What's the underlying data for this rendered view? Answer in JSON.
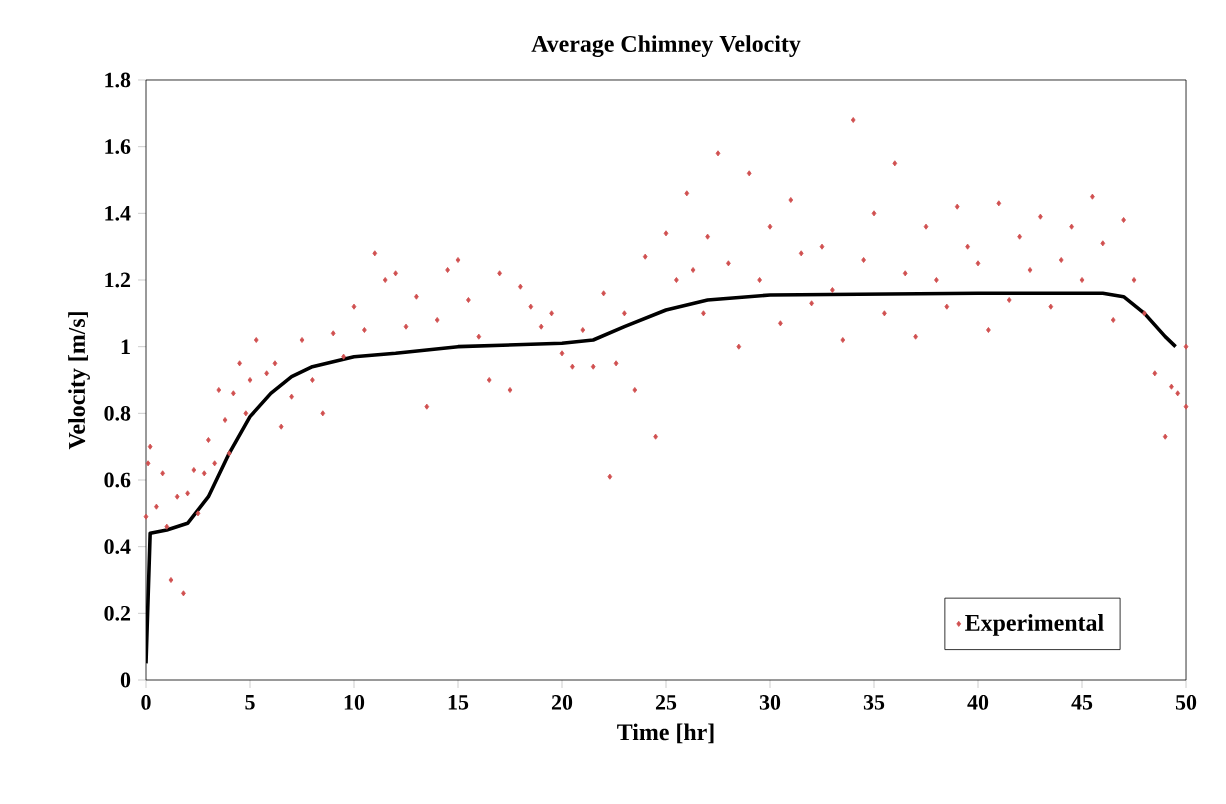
{
  "chart_data": {
    "type": "scatter",
    "title": "Average Chimney Velocity",
    "xlabel": "Time [hr]",
    "ylabel": "Velocity [m/s]",
    "xlim": [
      0,
      50
    ],
    "xticks": [
      0,
      5,
      10,
      15,
      20,
      25,
      30,
      35,
      40,
      45,
      50
    ],
    "ylim": [
      0,
      1.8
    ],
    "yticks": [
      0,
      0.2,
      0.4,
      0.6,
      0.8,
      1,
      1.2,
      1.4,
      1.6,
      1.8
    ],
    "grid": false,
    "legend": "bottom right",
    "series": [
      {
        "name": "Experimental",
        "marker": "diamond",
        "color": "#d05050",
        "x": [
          0,
          0.1,
          0.2,
          0.5,
          0.8,
          1,
          1.2,
          1.5,
          1.8,
          2,
          2.3,
          2.5,
          2.8,
          3,
          3.3,
          3.5,
          3.8,
          4,
          4.2,
          4.5,
          4.8,
          5,
          5.3,
          5.8,
          6.2,
          6.5,
          7,
          7.5,
          8,
          8.5,
          9,
          9.5,
          10,
          10.5,
          11,
          11.5,
          12,
          12.5,
          13,
          13.5,
          14,
          14.5,
          15,
          15.5,
          16,
          16.5,
          17,
          17.5,
          18,
          18.5,
          19,
          19.5,
          20,
          20.5,
          21,
          21.5,
          22,
          22.3,
          22.6,
          23,
          23.5,
          24,
          24.5,
          25,
          25.5,
          26,
          26.3,
          26.8,
          27,
          27.5,
          28,
          28.5,
          29,
          29.5,
          30,
          30.5,
          31,
          31.5,
          32,
          32.5,
          33,
          33.5,
          34,
          34.5,
          35,
          35.5,
          36,
          36.5,
          37,
          37.5,
          38,
          38.5,
          39,
          39.5,
          40,
          40.5,
          41,
          41.5,
          42,
          42.5,
          43,
          43.5,
          44,
          44.5,
          45,
          45.5,
          46,
          46.5,
          47,
          47.5,
          48,
          48.5,
          49,
          49.3,
          49.6,
          50,
          50
        ],
        "values": [
          0.49,
          0.65,
          0.7,
          0.52,
          0.62,
          0.46,
          0.3,
          0.55,
          0.26,
          0.56,
          0.63,
          0.5,
          0.62,
          0.72,
          0.65,
          0.87,
          0.78,
          0.68,
          0.86,
          0.95,
          0.8,
          0.9,
          1.02,
          0.92,
          0.95,
          0.76,
          0.85,
          1.02,
          0.9,
          0.8,
          1.04,
          0.97,
          1.12,
          1.05,
          1.28,
          1.2,
          1.22,
          1.06,
          1.15,
          0.82,
          1.08,
          1.23,
          1.26,
          1.14,
          1.03,
          0.9,
          1.22,
          0.87,
          1.18,
          1.12,
          1.06,
          1.1,
          0.98,
          0.94,
          1.05,
          0.94,
          1.16,
          0.61,
          0.95,
          1.1,
          0.87,
          1.27,
          0.73,
          1.34,
          1.2,
          1.46,
          1.23,
          1.1,
          1.33,
          1.58,
          1.25,
          1.0,
          1.52,
          1.2,
          1.36,
          1.07,
          1.44,
          1.28,
          1.13,
          1.3,
          1.17,
          1.02,
          1.68,
          1.26,
          1.4,
          1.1,
          1.55,
          1.22,
          1.03,
          1.36,
          1.2,
          1.12,
          1.42,
          1.3,
          1.25,
          1.05,
          1.43,
          1.14,
          1.33,
          1.23,
          1.39,
          1.12,
          1.26,
          1.36,
          1.2,
          1.45,
          1.31,
          1.08,
          1.38,
          1.2,
          1.1,
          0.92,
          0.73,
          0.88,
          0.86,
          1.0,
          0.82
        ]
      },
      {
        "type": "line",
        "color": "#000000",
        "line_style": "solid",
        "marker": "none",
        "x": [
          0,
          0.2,
          1,
          2,
          3,
          4,
          5,
          6,
          7,
          8,
          10,
          12,
          15,
          20,
          21.5,
          23,
          25,
          27,
          30,
          40,
          46,
          47,
          48,
          49,
          49.5
        ],
        "values": [
          0.05,
          0.44,
          0.45,
          0.47,
          0.55,
          0.68,
          0.79,
          0.86,
          0.91,
          0.94,
          0.97,
          0.98,
          1.0,
          1.01,
          1.02,
          1.06,
          1.11,
          1.14,
          1.155,
          1.16,
          1.16,
          1.15,
          1.1,
          1.03,
          1.0
        ]
      }
    ]
  }
}
